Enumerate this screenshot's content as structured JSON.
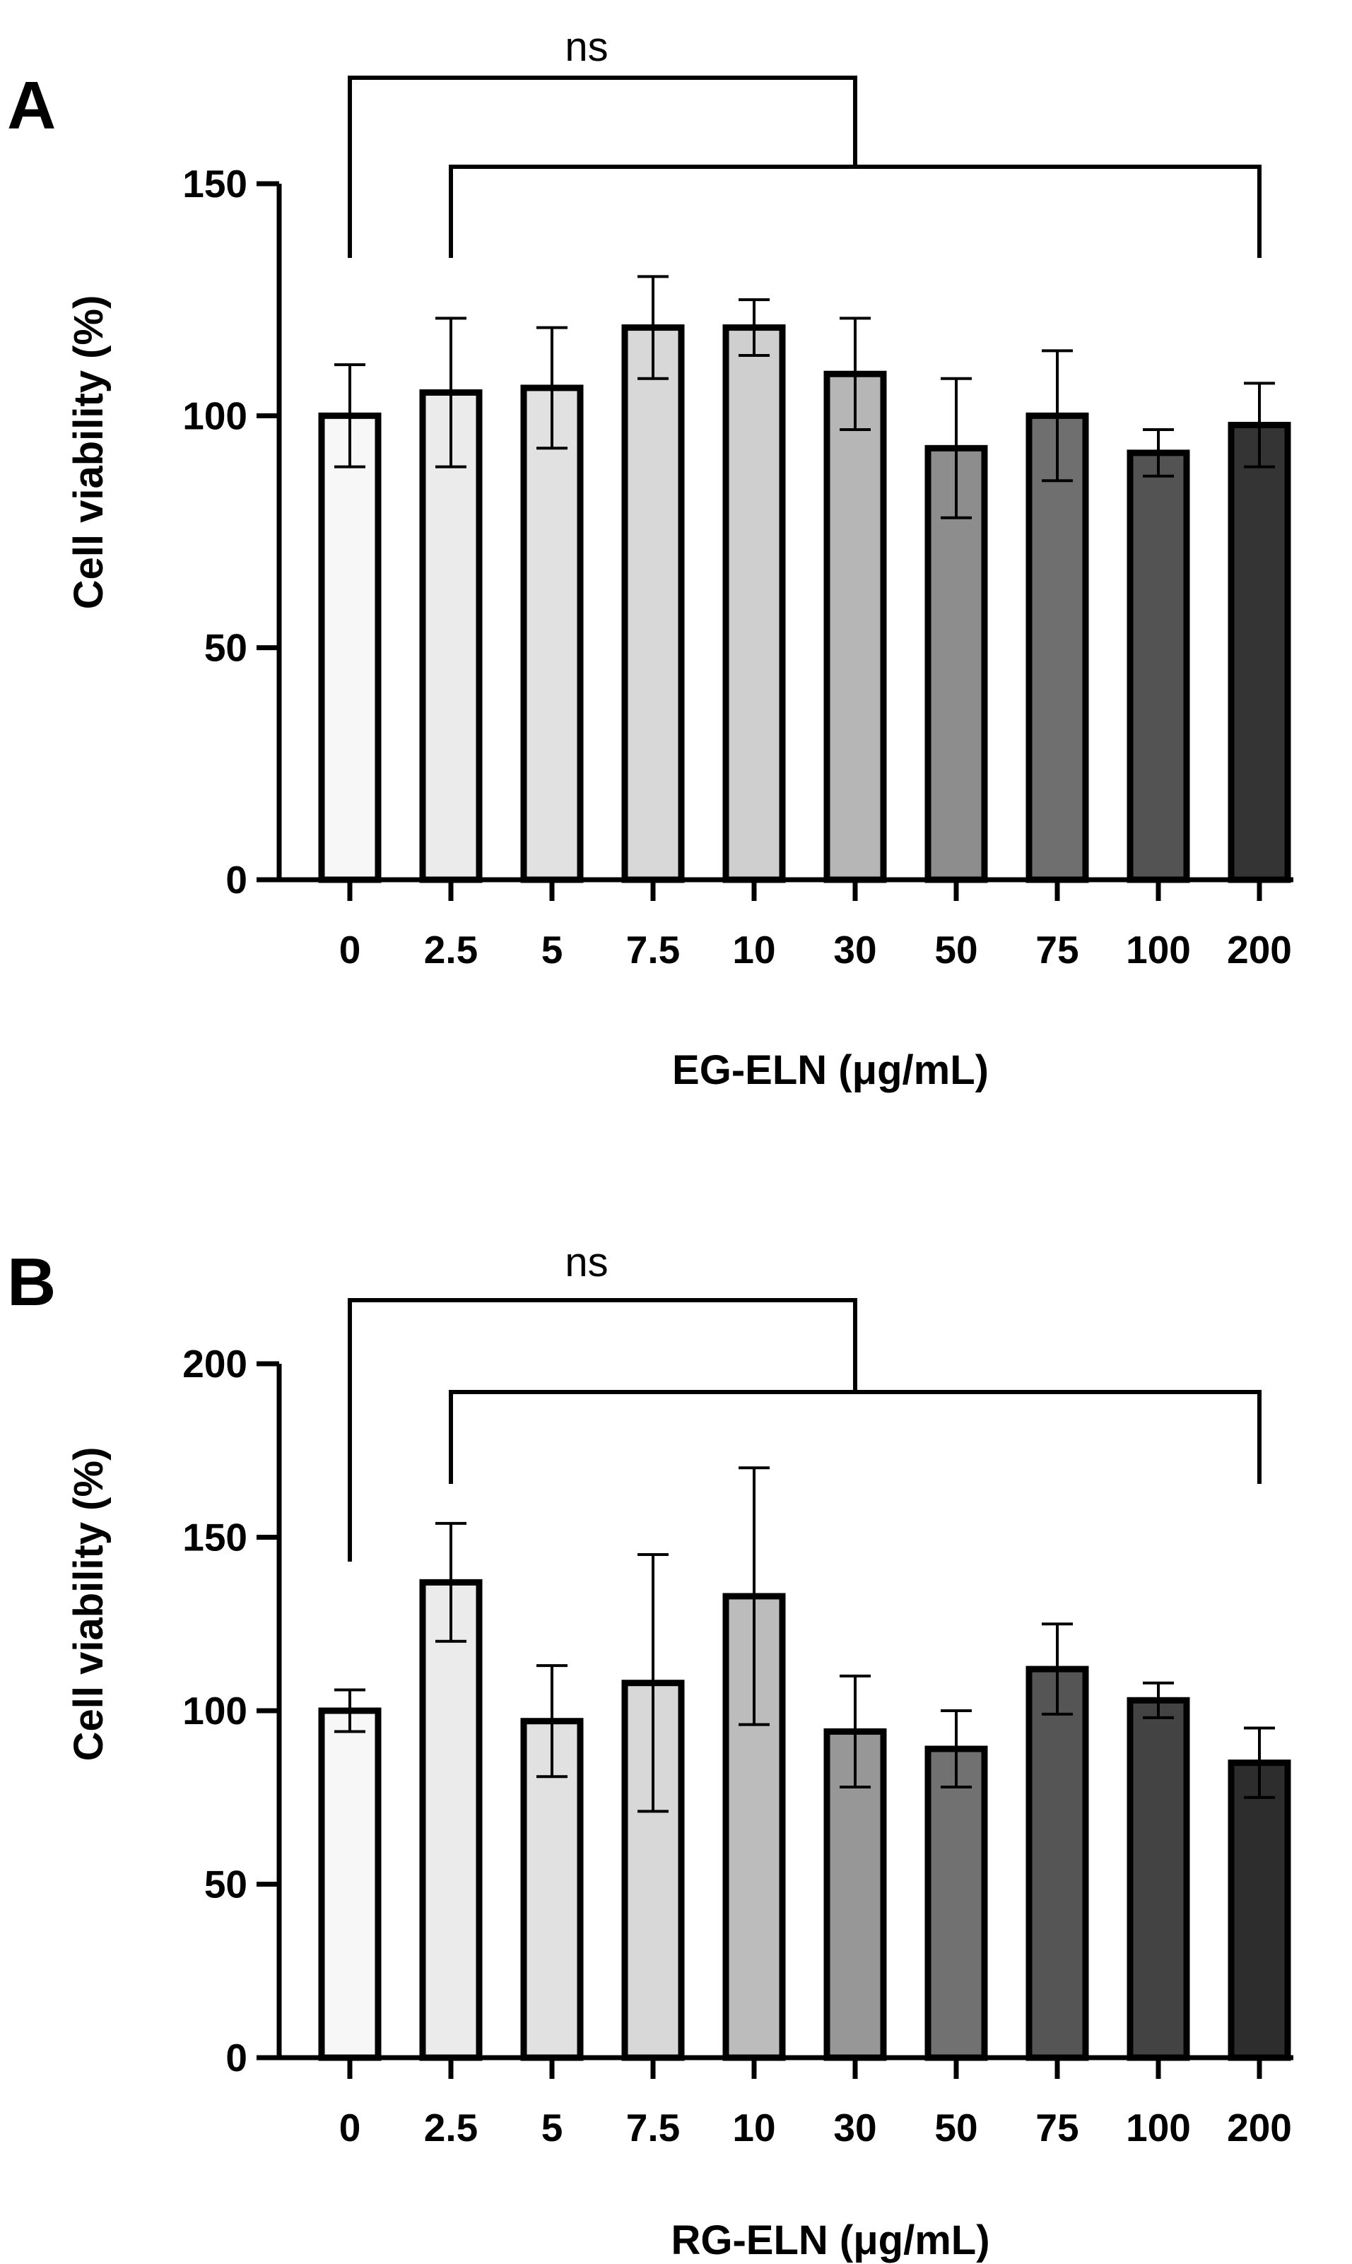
{
  "figure": {
    "panels": [
      "A",
      "B"
    ]
  },
  "chart_data": [
    {
      "panel": "A",
      "type": "bar",
      "categories": [
        "0",
        "2.5",
        "5",
        "7.5",
        "10",
        "30",
        "50",
        "75",
        "100",
        "200"
      ],
      "values": [
        100,
        105,
        106,
        119,
        119,
        109,
        93,
        100,
        92,
        98
      ],
      "error": [
        11,
        16,
        13,
        11,
        6,
        12,
        15,
        14,
        5,
        9
      ],
      "xlabel": "EG-ELN (μg/mL)",
      "ylabel": "Cell viability (%)",
      "ylim": [
        0,
        150
      ],
      "yticks": [
        0,
        50,
        100,
        150
      ],
      "fill_colors": [
        "#f7f7f7",
        "#ebebeb",
        "#e1e1e1",
        "#d8d8d8",
        "#cfcfcf",
        "#b6b6b6",
        "#8d8d8d",
        "#6f6f6f",
        "#535353",
        "#343434"
      ],
      "annotation": {
        "label": "ns",
        "comparison": "0 vs 2.5–200"
      }
    },
    {
      "panel": "B",
      "type": "bar",
      "categories": [
        "0",
        "2.5",
        "5",
        "7.5",
        "10",
        "30",
        "50",
        "75",
        "100",
        "200"
      ],
      "values": [
        100,
        137,
        97,
        108,
        133,
        94,
        89,
        112,
        103,
        85
      ],
      "error": [
        6,
        17,
        16,
        37,
        37,
        16,
        11,
        13,
        5,
        10
      ],
      "xlabel": "RG-ELN (μg/mL)",
      "ylabel": "Cell viability (%)",
      "ylim": [
        0,
        200
      ],
      "yticks": [
        0,
        50,
        100,
        150,
        200
      ],
      "fill_colors": [
        "#f7f7f7",
        "#ebebeb",
        "#e1e1e1",
        "#d8d8d8",
        "#bcbcbc",
        "#979797",
        "#717171",
        "#555555",
        "#434343",
        "#2d2d2d"
      ],
      "annotation": {
        "label": "ns",
        "comparison": "0 vs 2.5–200"
      }
    }
  ]
}
